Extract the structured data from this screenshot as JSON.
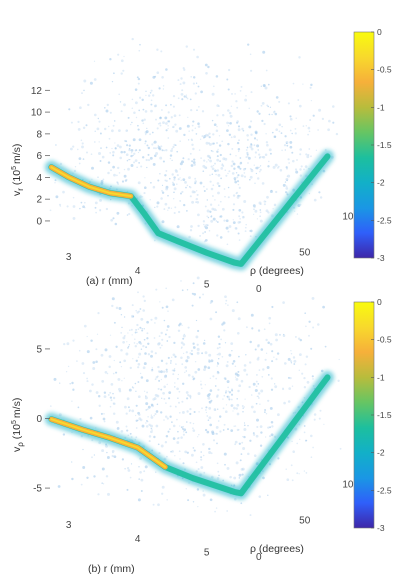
{
  "colors": {
    "colormap": [
      "#3e26a8",
      "#2f5ffa",
      "#1a97e4",
      "#12b0c8",
      "#1dbf9e",
      "#66c563",
      "#b8bc3c",
      "#f6b03a",
      "#f8d92c",
      "#f9fb0e"
    ],
    "cloud": "#c9def3",
    "cloud_dense": "#9fc6ea"
  },
  "chart_data": [
    {
      "type": "scatter",
      "panel": "(a)",
      "xlabel": "(a) r (mm)",
      "ylabel": "v_r (10^5 m/s)",
      "ylabel_main": "v",
      "ylabel_sub": "r",
      "ylabel_rest": "(10",
      "ylabel_sup": "5",
      "ylabel_unit": "m/s)",
      "zlabel": "ρ (degrees)",
      "x_ticks": [
        "3",
        "4",
        "5"
      ],
      "y_ticks": [
        "0",
        "2",
        "4",
        "6",
        "8",
        "10",
        "12"
      ],
      "z_ticks": [
        "0",
        "50",
        "100"
      ],
      "xlim": [
        2.7,
        5.6
      ],
      "ylim": [
        -1.2,
        13.5
      ],
      "zlim": [
        0,
        110
      ],
      "colorbar": {
        "ticks": [
          "0",
          "-0.5",
          "-1",
          "-1.5",
          "-2",
          "-2.5",
          "-3"
        ],
        "range": [
          -3,
          0
        ]
      },
      "ridge": {
        "description": "dense band of max density",
        "points_r_v": [
          [
            2.75,
            5.0
          ],
          [
            3.0,
            4.4
          ],
          [
            3.3,
            3.9
          ],
          [
            3.6,
            3.7
          ],
          [
            3.9,
            3.8
          ],
          [
            4.1,
            2.4
          ],
          [
            4.3,
            0.9
          ],
          [
            4.6,
            0.5
          ],
          [
            5.0,
            0.0
          ],
          [
            5.4,
            -0.4
          ]
        ],
        "rho_ramp_v": [
          [
            0,
            -0.4
          ],
          [
            100,
            2.8
          ]
        ]
      }
    },
    {
      "type": "scatter",
      "panel": "(b)",
      "xlabel": "(b) r (mm)",
      "ylabel": "v_ρ (10^5 m/s)",
      "ylabel_main": "v",
      "ylabel_sub": "ρ",
      "ylabel_rest": "(10",
      "ylabel_sup": "5",
      "ylabel_unit": "m/s)",
      "zlabel": "ρ (degrees)",
      "x_ticks": [
        "3",
        "4",
        "5"
      ],
      "y_ticks": [
        "-5",
        "0",
        "5"
      ],
      "z_ticks": [
        "0",
        "50",
        "100"
      ],
      "xlim": [
        2.7,
        5.6
      ],
      "ylim": [
        -6,
        6
      ],
      "zlim": [
        0,
        110
      ],
      "colorbar": {
        "ticks": [
          "0",
          "-0.5",
          "-1",
          "-1.5",
          "-2",
          "-2.5",
          "-3"
        ],
        "range": [
          -3,
          0
        ]
      },
      "ridge": {
        "description": "dense band of max density",
        "points_r_v": [
          [
            2.75,
            0.0
          ],
          [
            3.2,
            -0.3
          ],
          [
            3.6,
            -0.5
          ],
          [
            4.0,
            -0.8
          ],
          [
            4.4,
            -1.8
          ],
          [
            4.8,
            -2.2
          ],
          [
            5.4,
            -2.6
          ]
        ],
        "rho_ramp_v": [
          [
            0,
            -2.6
          ],
          [
            100,
            0.5
          ]
        ]
      }
    }
  ]
}
